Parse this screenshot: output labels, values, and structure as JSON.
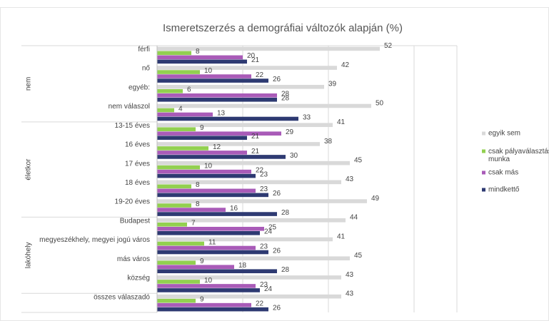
{
  "chart_data": {
    "type": "bar",
    "orientation": "horizontal",
    "title": "Ismeretszerzés a demográfiai változók alapján (%)",
    "groups": [
      {
        "name": "nem",
        "categories": [
          "férfi",
          "nő",
          "egyéb:",
          "nem válaszol"
        ]
      },
      {
        "name": "életkor",
        "categories": [
          "13-15 éves",
          "16 éves",
          "17 éves",
          "18 éves",
          "19-20 éves"
        ]
      },
      {
        "name": "lakóhely",
        "categories": [
          "Budapest",
          "megyeszékhely, megyei jogú város",
          "más város",
          "község"
        ]
      },
      {
        "name": null,
        "categories": [
          "összes válaszadó"
        ]
      }
    ],
    "series": [
      {
        "name": "egyik sem",
        "color": "#d9d9d9",
        "values": [
          52,
          42,
          39,
          50,
          41,
          38,
          45,
          43,
          49,
          44,
          41,
          45,
          43,
          43
        ]
      },
      {
        "name": "csak pályaválasztási munka",
        "color": "#92d050",
        "values": [
          8,
          10,
          6,
          4,
          9,
          12,
          10,
          8,
          8,
          7,
          11,
          9,
          10,
          9
        ]
      },
      {
        "name": "csak más",
        "color": "#a95bb8",
        "values": [
          20,
          22,
          28,
          13,
          29,
          21,
          22,
          23,
          16,
          25,
          23,
          18,
          23,
          22
        ]
      },
      {
        "name": "mindkettő",
        "color": "#2e3a72",
        "values": [
          21,
          26,
          28,
          33,
          21,
          30,
          23,
          26,
          28,
          24,
          26,
          28,
          24,
          26
        ]
      }
    ],
    "xlim": [
      0,
      70
    ],
    "xticks": [
      0,
      20,
      40,
      60
    ],
    "grid": true,
    "legend": "right"
  }
}
